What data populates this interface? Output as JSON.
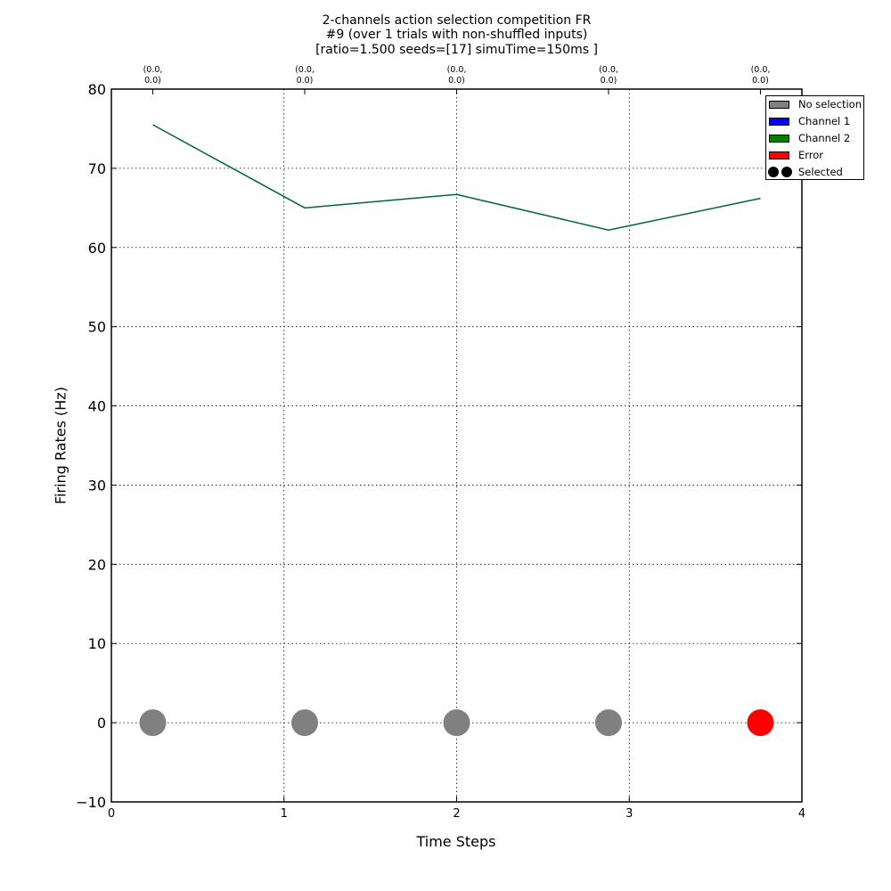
{
  "chart_data": {
    "type": "line",
    "title_lines": [
      "2-channels action selection competition FR",
      "#9 (over 1 trials with non-shuffled inputs)",
      "[ratio=1.500 seeds=[17] simuTime=150ms ]"
    ],
    "xlabel": "Time Steps",
    "ylabel": "Firing Rates (Hz)",
    "xlim": [
      0,
      4
    ],
    "ylim": [
      -10,
      80
    ],
    "x_ticks": [
      0,
      1,
      2,
      3,
      4
    ],
    "y_ticks": [
      -10,
      0,
      10,
      20,
      30,
      40,
      50,
      60,
      70,
      80
    ],
    "grid": true,
    "line_color": "#006633",
    "series": [
      {
        "x": [
          0.24,
          1.12,
          2.0,
          2.88,
          3.76
        ],
        "values": [
          75.5,
          65.0,
          66.7,
          62.2,
          66.2
        ]
      }
    ],
    "top_annotations": {
      "x": [
        0.24,
        1.12,
        2.0,
        2.88,
        3.76
      ],
      "labels": [
        "(0.0,\n0.0)",
        "(0.0,\n0.0)",
        "(0.0,\n0.0)",
        "(0.0,\n0.0)",
        "(0.0,\n0.0)"
      ]
    },
    "selection_markers": {
      "x": [
        0.24,
        1.12,
        2.0,
        2.88,
        3.76
      ],
      "y": [
        0,
        0,
        0,
        0,
        0
      ],
      "categories": [
        "No selection",
        "No selection",
        "No selection",
        "No selection",
        "Error"
      ]
    },
    "legend": {
      "position": "top-right",
      "entries": [
        {
          "label": "No selection",
          "color": "#808080",
          "kind": "swatch"
        },
        {
          "label": "Channel 1",
          "color": "#0000ff",
          "kind": "swatch"
        },
        {
          "label": "Channel 2",
          "color": "#008000",
          "kind": "swatch"
        },
        {
          "label": "Error",
          "color": "#ff0000",
          "kind": "swatch"
        },
        {
          "label": "Selected",
          "color": "#000000",
          "kind": "dots"
        }
      ]
    }
  }
}
